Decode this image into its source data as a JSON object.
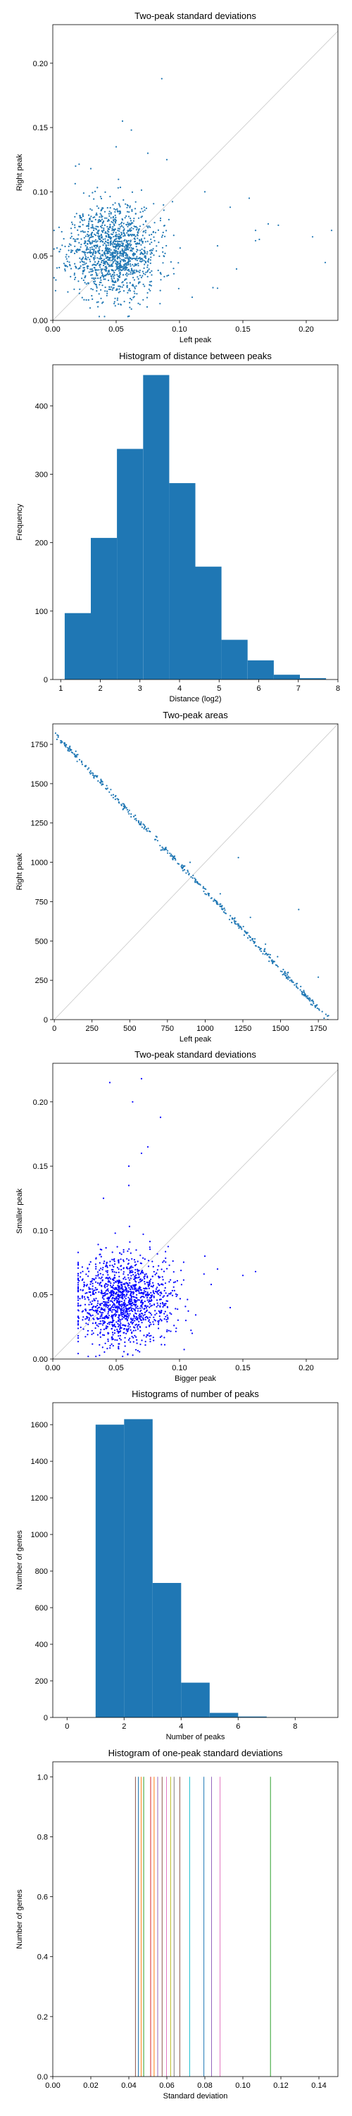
{
  "charts": [
    {
      "type": "scatter",
      "title": "Two-peak standard deviations",
      "xlabel": "Left peak",
      "ylabel": "Right peak",
      "xlim": [
        0,
        0.225
      ],
      "ylim": [
        0,
        0.23
      ],
      "xticks": [
        0,
        0.05,
        0.1,
        0.15,
        0.2
      ],
      "yticks": [
        0,
        0.05,
        0.1,
        0.15,
        0.2
      ],
      "x_tick_labels": [
        "0.00",
        "0.05",
        "0.10",
        "0.15",
        "0.20"
      ],
      "y_tick_labels": [
        "0.00",
        "0.05",
        "0.10",
        "0.15",
        "0.20"
      ],
      "diagonal": true,
      "point_color": "#1f77b4",
      "cloud": {
        "n": 1400,
        "cx": 0.048,
        "cy": 0.054,
        "sx": 0.017,
        "sy": 0.018,
        "xmin": 0.001,
        "xmax": 0.13,
        "ymin": 0.003,
        "ymax": 0.135,
        "seed": 11
      },
      "points": [
        [
          0.086,
          0.188
        ],
        [
          0.055,
          0.155
        ],
        [
          0.062,
          0.148
        ],
        [
          0.14,
          0.088
        ],
        [
          0.155,
          0.095
        ],
        [
          0.17,
          0.075
        ],
        [
          0.205,
          0.065
        ],
        [
          0.22,
          0.07
        ],
        [
          0.215,
          0.045
        ],
        [
          0.16,
          0.062
        ],
        [
          0.13,
          0.058
        ],
        [
          0.12,
          0.1
        ],
        [
          0.145,
          0.04
        ],
        [
          0.16,
          0.07
        ],
        [
          0.09,
          0.125
        ],
        [
          0.075,
          0.13
        ],
        [
          0.05,
          0.135
        ],
        [
          0.178,
          0.074
        ],
        [
          0.163,
          0.063
        ],
        [
          0.018,
          0.12
        ],
        [
          0.03,
          0.118
        ],
        [
          0.11,
          0.018
        ],
        [
          0.13,
          0.025
        ]
      ]
    },
    {
      "type": "bar",
      "title": "Histogram of distance between peaks",
      "xlabel": "Distance (log2)",
      "ylabel": "Frequency",
      "xlim": [
        0.8,
        8.0
      ],
      "ylim": [
        0,
        460
      ],
      "xticks": [
        1,
        2,
        3,
        4,
        5,
        6,
        7,
        8
      ],
      "yticks": [
        0,
        100,
        200,
        300,
        400
      ],
      "bar_color": "#1f77b4",
      "bins": [
        [
          1.1,
          1.76,
          97
        ],
        [
          1.76,
          2.42,
          207
        ],
        [
          2.42,
          3.08,
          337
        ],
        [
          3.08,
          3.74,
          445
        ],
        [
          3.74,
          4.4,
          287
        ],
        [
          4.4,
          5.06,
          165
        ],
        [
          5.06,
          5.72,
          58
        ],
        [
          5.72,
          6.38,
          28
        ],
        [
          6.38,
          7.04,
          7
        ],
        [
          7.04,
          7.7,
          2
        ]
      ]
    },
    {
      "type": "scatter",
      "title": "Two-peak areas",
      "xlabel": "Left peak",
      "ylabel": "Right peak",
      "xlim": [
        -10,
        1880
      ],
      "ylim": [
        0,
        1880
      ],
      "xticks": [
        0,
        250,
        500,
        750,
        1000,
        1250,
        1500,
        1750
      ],
      "yticks": [
        0,
        250,
        500,
        750,
        1000,
        1250,
        1500,
        1750
      ],
      "diagonal": true,
      "point_color": "#1f77b4",
      "line_cloud": {
        "total": 1820,
        "n": 420,
        "spread": 10,
        "seed": 23
      },
      "points": [
        [
          1750,
          270
        ],
        [
          1620,
          700
        ],
        [
          1480,
          400
        ],
        [
          1550,
          300
        ],
        [
          1300,
          650
        ],
        [
          1220,
          1030
        ],
        [
          1400,
          480
        ],
        [
          1680,
          150
        ],
        [
          1100,
          800
        ],
        [
          900,
          1000
        ]
      ]
    },
    {
      "type": "scatter",
      "title": "Two-peak standard deviations",
      "xlabel": "Bigger peak",
      "ylabel": "Smaller peak",
      "xlim": [
        0,
        0.225
      ],
      "ylim": [
        0,
        0.23
      ],
      "xticks": [
        0,
        0.05,
        0.1,
        0.15,
        0.2
      ],
      "yticks": [
        0,
        0.05,
        0.1,
        0.15,
        0.2
      ],
      "x_tick_labels": [
        "0.00",
        "0.05",
        "0.10",
        "0.15",
        "0.20"
      ],
      "y_tick_labels": [
        "0.00",
        "0.05",
        "0.10",
        "0.15",
        "0.20"
      ],
      "diagonal": true,
      "point_color": "#0000ff",
      "cloud": {
        "n": 1400,
        "cx": 0.055,
        "cy": 0.046,
        "sx": 0.019,
        "sy": 0.017,
        "xmin": 0.02,
        "xmax": 0.14,
        "ymin": 0.002,
        "ymax": 0.11,
        "seed": 37
      },
      "points": [
        [
          0.045,
          0.215
        ],
        [
          0.07,
          0.218
        ],
        [
          0.063,
          0.2
        ],
        [
          0.085,
          0.188
        ],
        [
          0.075,
          0.165
        ],
        [
          0.07,
          0.16
        ],
        [
          0.06,
          0.15
        ],
        [
          0.12,
          0.08
        ],
        [
          0.13,
          0.07
        ],
        [
          0.15,
          0.065
        ],
        [
          0.125,
          0.058
        ],
        [
          0.16,
          0.068
        ],
        [
          0.14,
          0.04
        ],
        [
          0.105,
          0.03
        ],
        [
          0.11,
          0.02
        ],
        [
          0.06,
          0.135
        ],
        [
          0.04,
          0.125
        ]
      ]
    },
    {
      "type": "bar",
      "title": "Histograms of number of peaks",
      "xlabel": "Number of peaks",
      "ylabel": "Number of genes",
      "xlim": [
        -0.5,
        9.5
      ],
      "ylim": [
        0,
        1720
      ],
      "xticks": [
        0,
        2,
        4,
        6,
        8
      ],
      "yticks": [
        0,
        200,
        400,
        600,
        800,
        1000,
        1200,
        1400,
        1600
      ],
      "bar_color": "#1f77b4",
      "bins": [
        [
          1,
          2,
          1600
        ],
        [
          2,
          3,
          1630
        ],
        [
          3,
          4,
          735
        ],
        [
          4,
          5,
          190
        ],
        [
          5,
          6,
          25
        ],
        [
          6,
          7,
          5
        ],
        [
          7,
          8,
          1
        ],
        [
          8,
          9,
          0
        ]
      ]
    },
    {
      "type": "bar",
      "title": "Histogram of one-peak standard deviations",
      "xlabel": "Standard deviation",
      "ylabel": "Number of genes",
      "xlim": [
        0,
        0.15
      ],
      "ylim": [
        0,
        1.05
      ],
      "xticks": [
        0,
        0.02,
        0.04,
        0.06,
        0.08,
        0.1,
        0.12,
        0.14
      ],
      "yticks": [
        0,
        0.2,
        0.4,
        0.6,
        0.8,
        1.0
      ],
      "x_tick_labels": [
        "0.00",
        "0.02",
        "0.04",
        "0.06",
        "0.08",
        "0.10",
        "0.12",
        "0.14"
      ],
      "y_tick_labels": [
        "0.0",
        "0.2",
        "0.4",
        "0.6",
        "0.8",
        "1.0"
      ],
      "lines": [
        [
          0.0435,
          1,
          "#8c564b"
        ],
        [
          0.045,
          1,
          "#1f77b4"
        ],
        [
          0.0465,
          1,
          "#ff7f0e"
        ],
        [
          0.0478,
          1,
          "#2ca02c"
        ],
        [
          0.0515,
          1,
          "#d62728"
        ],
        [
          0.0533,
          1,
          "#ff7f0e"
        ],
        [
          0.0552,
          1,
          "#9467bd"
        ],
        [
          0.0575,
          1,
          "#8c564b"
        ],
        [
          0.0598,
          1,
          "#e377c2"
        ],
        [
          0.062,
          1,
          "#bcbd22"
        ],
        [
          0.0638,
          1,
          "#7f7f7f"
        ],
        [
          0.0668,
          1,
          "#8c564b"
        ],
        [
          0.072,
          1,
          "#17becf"
        ],
        [
          0.0795,
          1,
          "#1f77b4"
        ],
        [
          0.0835,
          1,
          "#9467bd"
        ],
        [
          0.088,
          1,
          "#e377c2"
        ],
        [
          0.1145,
          1,
          "#2ca02c"
        ]
      ]
    }
  ]
}
